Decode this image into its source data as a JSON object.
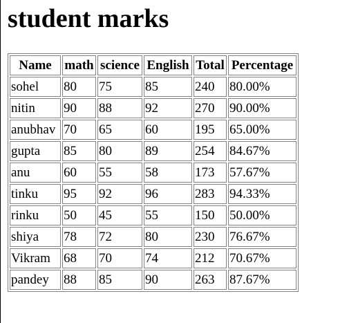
{
  "page": {
    "title": "student marks"
  },
  "table": {
    "headers": [
      "Name",
      "math",
      "science",
      "English",
      "Total",
      "Percentage"
    ],
    "rows": [
      [
        "sohel",
        "80",
        "75",
        "85",
        "240",
        "80.00%"
      ],
      [
        "nitin",
        "90",
        "88",
        "92",
        "270",
        "90.00%"
      ],
      [
        "anubhav",
        "70",
        "65",
        "60",
        "195",
        "65.00%"
      ],
      [
        "gupta",
        "85",
        "80",
        "89",
        "254",
        "84.67%"
      ],
      [
        "anu",
        "60",
        "55",
        "58",
        "173",
        "57.67%"
      ],
      [
        "tinku",
        "95",
        "92",
        "96",
        "283",
        "94.33%"
      ],
      [
        "rinku",
        "50",
        "45",
        "55",
        "150",
        "50.00%"
      ],
      [
        "shiya",
        "78",
        "72",
        "80",
        "230",
        "76.67%"
      ],
      [
        "Vikram",
        "68",
        "70",
        "74",
        "212",
        "70.67%"
      ],
      [
        "pandey",
        "88",
        "85",
        "90",
        "263",
        "87.67%"
      ]
    ]
  }
}
